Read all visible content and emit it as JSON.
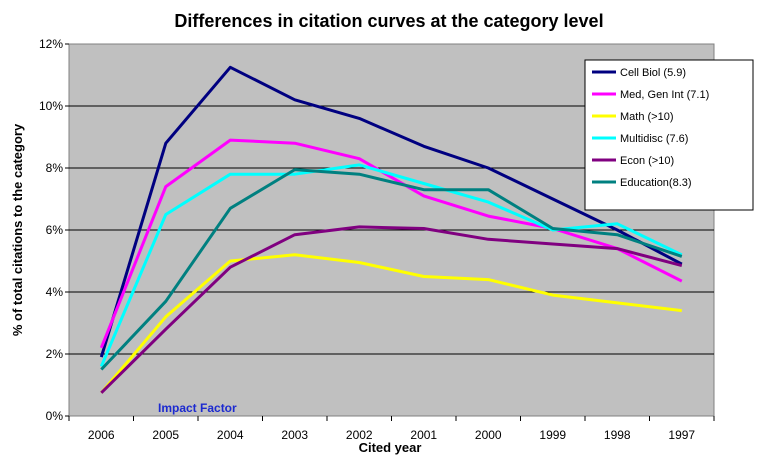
{
  "chart_data": {
    "type": "line",
    "title": "Differences in citation curves at the category level",
    "xlabel": "Cited year",
    "ylabel": "% of total citations to the category",
    "annotation": "Impact Factor",
    "categories": [
      "2006",
      "2005",
      "2004",
      "2003",
      "2002",
      "2001",
      "2000",
      "1999",
      "1998",
      "1997"
    ],
    "ylim": [
      0,
      12
    ],
    "yticks": [
      0,
      2,
      4,
      6,
      8,
      10,
      12
    ],
    "ytick_labels": [
      "0%",
      "2%",
      "4%",
      "6%",
      "8%",
      "10%",
      "12%"
    ],
    "grid": true,
    "legend_position": "top-right",
    "plot_background": "#c0c0c0",
    "series": [
      {
        "name": "Cell Biol (5.9)",
        "color": "#000080",
        "values": [
          1.9,
          8.8,
          11.25,
          10.2,
          9.6,
          8.7,
          8.0,
          7.0,
          6.0,
          4.9
        ]
      },
      {
        "name": "Med, Gen Int (7.1)",
        "color": "#ff00ff",
        "values": [
          2.2,
          7.4,
          8.9,
          8.8,
          8.3,
          7.1,
          6.45,
          6.05,
          5.4,
          4.35
        ]
      },
      {
        "name": "Math (>10)",
        "color": "#ffff00",
        "values": [
          0.75,
          3.2,
          5.0,
          5.2,
          4.95,
          4.5,
          4.4,
          3.9,
          3.65,
          3.4
        ]
      },
      {
        "name": "Multidisc (7.6)",
        "color": "#00ffff",
        "values": [
          1.6,
          6.5,
          7.8,
          7.8,
          8.1,
          7.5,
          6.9,
          6.0,
          6.2,
          5.2
        ]
      },
      {
        "name": "Econ (>10)",
        "color": "#800080",
        "values": [
          0.75,
          2.8,
          4.8,
          5.85,
          6.1,
          6.05,
          5.7,
          5.55,
          5.4,
          4.85
        ]
      },
      {
        "name": "Education(8.3)",
        "color": "#008080",
        "values": [
          1.5,
          3.7,
          6.7,
          7.95,
          7.8,
          7.3,
          7.3,
          6.05,
          5.85,
          5.15
        ]
      }
    ]
  }
}
